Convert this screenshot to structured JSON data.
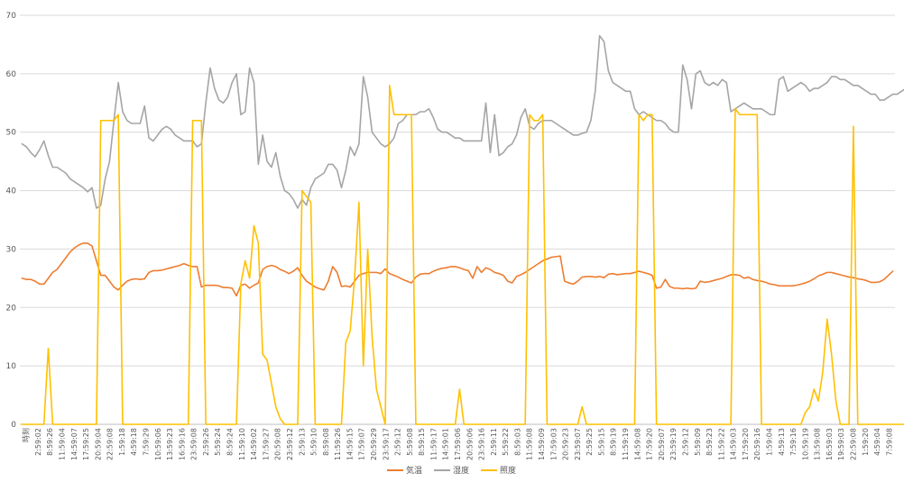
{
  "chart_data": {
    "type": "line",
    "title": "",
    "xlabel": "",
    "ylabel": "",
    "ylim": [
      0,
      70
    ],
    "y_ticks": [
      0,
      10,
      20,
      30,
      40,
      50,
      60,
      70
    ],
    "grid": "horizontal",
    "legend_position": "bottom",
    "x_ticks": [
      "時刻",
      "2:59:02",
      "8:59:26",
      "11:59:04",
      "14:59:07",
      "17:59:25",
      "20:59:04",
      "22:59:08",
      "1:59:18",
      "4:59:18",
      "7:59:29",
      "10:59:06",
      "13:59:23",
      "16:59:16",
      "23:59:08",
      "2:59:26",
      "5:59:24",
      "8:59:24",
      "11:59:10",
      "14:59:02",
      "17:59:27",
      "20:59:08",
      "23:59:12",
      "2:59:13",
      "5:59:10",
      "8:59:08",
      "11:59:26",
      "14:59:15",
      "17:59:07",
      "20:59:29",
      "23:59:17",
      "2:59:12",
      "5:59:08",
      "8:59:15",
      "11:59:17",
      "14:59:01",
      "17:59:06",
      "20:59:06",
      "23:59:16",
      "2:59:11",
      "5:59:22",
      "8:59:03",
      "11:59:08",
      "14:59:09",
      "17:59:03",
      "20:59:23",
      "23:59:07",
      "2:59:25",
      "5:59:15",
      "8:59:19",
      "11:59:19",
      "14:59:08",
      "17:59:20",
      "20:59:07",
      "23:59:19",
      "2:59:12",
      "5:59:09",
      "8:59:23",
      "11:59:22",
      "14:59:03",
      "17:59:20",
      "20:59:16",
      "1:59:04",
      "4:59:13",
      "7:59:16",
      "10:59:19",
      "13:59:08",
      "16:59:03",
      "19:59:03",
      "22:59:08",
      "1:59:20",
      "4:59:04",
      "7:59:08"
    ],
    "series": [
      {
        "name": "気温",
        "color": "#ED7D31",
        "values": [
          25.0,
          24.8,
          24.8,
          24.5,
          24.0,
          24.0,
          25.0,
          26.0,
          26.5,
          27.5,
          28.5,
          29.5,
          30.2,
          30.7,
          31.0,
          31.0,
          30.5,
          28.0,
          25.5,
          25.5,
          24.5,
          23.5,
          23.0,
          23.8,
          24.5,
          24.8,
          24.9,
          24.8,
          24.9,
          26.0,
          26.3,
          26.3,
          26.4,
          26.6,
          26.8,
          27.0,
          27.2,
          27.5,
          27.2,
          27.0,
          27.0,
          23.5,
          23.8,
          23.8,
          23.8,
          23.7,
          23.4,
          23.4,
          23.3,
          22.0,
          23.8,
          24.0,
          23.3,
          23.8,
          24.2,
          26.5,
          27.0,
          27.2,
          27.0,
          26.5,
          26.2,
          25.8,
          26.2,
          26.8,
          25.5,
          24.5,
          24.0,
          23.5,
          23.2,
          23.0,
          24.5,
          27.0,
          26.0,
          23.6,
          23.7,
          23.5,
          24.5,
          25.5,
          25.8,
          26.0,
          26.0,
          26.0,
          25.8,
          26.6,
          25.8,
          25.5,
          25.2,
          24.8,
          24.5,
          24.2,
          25.2,
          25.7,
          25.8,
          25.8,
          26.2,
          26.5,
          26.7,
          26.8,
          27.0,
          27.0,
          26.8,
          26.5,
          26.3,
          25.0,
          27.0,
          26.0,
          26.8,
          26.5,
          26.0,
          25.8,
          25.5,
          24.5,
          24.2,
          25.3,
          25.6,
          26.0,
          26.5,
          27.0,
          27.5,
          28.0,
          28.3,
          28.6,
          28.7,
          28.8,
          24.5,
          24.2,
          24.0,
          24.5,
          25.2,
          25.3,
          25.3,
          25.2,
          25.3,
          25.1,
          25.7,
          25.8,
          25.6,
          25.7,
          25.8,
          25.8,
          26.0,
          26.2,
          26.0,
          25.8,
          25.5,
          23.3,
          23.5,
          24.8,
          23.6,
          23.3,
          23.3,
          23.2,
          23.3,
          23.2,
          23.3,
          24.5,
          24.3,
          24.4,
          24.6,
          24.8,
          25.0,
          25.3,
          25.6,
          25.6,
          25.5,
          25.0,
          25.2,
          24.8,
          24.6,
          24.5,
          24.3,
          24.0,
          23.9,
          23.7,
          23.7,
          23.7,
          23.7,
          23.8,
          24.0,
          24.2,
          24.5,
          24.9,
          25.4,
          25.7,
          26.0,
          26.0,
          25.8,
          25.6,
          25.4,
          25.2,
          25.1,
          24.9,
          24.8,
          24.6,
          24.3,
          24.3,
          24.4,
          24.8,
          25.5,
          26.2
        ]
      },
      {
        "name": "湿度",
        "color": "#A5A5A5",
        "values": [
          48.0,
          47.5,
          46.5,
          45.8,
          47.0,
          48.5,
          46.0,
          44.0,
          44.0,
          43.5,
          43.0,
          42.0,
          41.5,
          41.0,
          40.5,
          39.8,
          40.5,
          37.0,
          37.5,
          42.0,
          45.0,
          52.0,
          58.5,
          53.5,
          52.0,
          51.5,
          51.5,
          51.5,
          54.5,
          49.0,
          48.5,
          49.5,
          50.5,
          51.0,
          50.5,
          49.5,
          49.0,
          48.5,
          48.5,
          48.5,
          47.5,
          48.0,
          55.0,
          61.0,
          57.5,
          55.5,
          55.0,
          56.0,
          58.5,
          60.0,
          53.0,
          53.5,
          61.0,
          58.5,
          44.5,
          49.5,
          45.0,
          44.0,
          46.5,
          42.5,
          40.0,
          39.5,
          38.5,
          37.0,
          38.5,
          37.5,
          40.5,
          42.0,
          42.5,
          43.0,
          44.5,
          44.5,
          43.5,
          40.5,
          43.5,
          47.5,
          46.0,
          48.0,
          59.5,
          56.0,
          50.0,
          49.0,
          48.0,
          47.5,
          48.0,
          49.0,
          51.5,
          52.0,
          53.0,
          53.0,
          53.0,
          53.5,
          53.5,
          54.0,
          52.5,
          50.5,
          50.0,
          50.0,
          49.5,
          49.0,
          49.0,
          48.5,
          48.5,
          48.5,
          48.5,
          48.5,
          55.0,
          46.5,
          53.0,
          46.0,
          46.5,
          47.5,
          48.0,
          49.5,
          52.5,
          54.0,
          51.0,
          50.5,
          51.5,
          52.0,
          52.0,
          52.0,
          51.5,
          51.0,
          50.5,
          50.0,
          49.5,
          49.5,
          49.8,
          50.0,
          52.0,
          57.0,
          66.5,
          65.5,
          60.5,
          58.5,
          58.0,
          57.5,
          57.0,
          57.0,
          54.0,
          53.0,
          53.5,
          53.0,
          52.5,
          52.0,
          52.0,
          51.5,
          50.5,
          50.0,
          50.0,
          61.5,
          59.0,
          54.0,
          60.0,
          60.5,
          58.5,
          58.0,
          58.5,
          58.0,
          59.0,
          58.5,
          53.5,
          54.0,
          54.5,
          55.0,
          54.5,
          54.0,
          54.0,
          54.0,
          53.5,
          53.0,
          53.0,
          59.0,
          59.5,
          57.0,
          57.5,
          58.0,
          58.5,
          58.0,
          57.0,
          57.5,
          57.5,
          58.0,
          58.5,
          59.5,
          59.5,
          59.0,
          59.0,
          58.5,
          58.0,
          58.0,
          57.5,
          57.0,
          56.5,
          56.5,
          55.5,
          55.5,
          56.0,
          56.5,
          56.5,
          57.0,
          57.5,
          58.0,
          58.5,
          59.0,
          59.0,
          58.5,
          58.0
        ]
      },
      {
        "name": "照度",
        "color": "#FFC000",
        "values": [
          0,
          0,
          0,
          0,
          0,
          0,
          13,
          0,
          0,
          0,
          0,
          0,
          0,
          0,
          0,
          0,
          0,
          0,
          52,
          52,
          52,
          52,
          53,
          0,
          0,
          0,
          0,
          0,
          0,
          0,
          0,
          0,
          0,
          0,
          0,
          0,
          0,
          0,
          0,
          52,
          52,
          52,
          0,
          0,
          0,
          0,
          0,
          0,
          0,
          0,
          24,
          28,
          25,
          34,
          31,
          12,
          11,
          7,
          3,
          1,
          0,
          0,
          0,
          0,
          40,
          39,
          38,
          0,
          0,
          0,
          0,
          0,
          0,
          0,
          14,
          16,
          25,
          38,
          10,
          30,
          15,
          6,
          3,
          0,
          58,
          53,
          53,
          53,
          53,
          53,
          0,
          0,
          0,
          0,
          0,
          0,
          0,
          0,
          0,
          0,
          6,
          0,
          0,
          0,
          0,
          0,
          0,
          0,
          0,
          0,
          0,
          0,
          0,
          0,
          0,
          0,
          53,
          52,
          52,
          53,
          0,
          0,
          0,
          0,
          0,
          0,
          0,
          0,
          3,
          0,
          0,
          0,
          0,
          0,
          0,
          0,
          0,
          0,
          0,
          0,
          0,
          53,
          52,
          53,
          53,
          0,
          0,
          0,
          0,
          0,
          0,
          0,
          0,
          0,
          0,
          0,
          0,
          0,
          0,
          0,
          0,
          0,
          0,
          54,
          53,
          53,
          53,
          53,
          53,
          0,
          0,
          0,
          0,
          0,
          0,
          0,
          0,
          0,
          0,
          2,
          3,
          6,
          4,
          9,
          18,
          12,
          4,
          0,
          0,
          0,
          51,
          0,
          0,
          0,
          0,
          0,
          0,
          0,
          0,
          0,
          0,
          0,
          0,
          0,
          0,
          0,
          0,
          0,
          0,
          0,
          0,
          0,
          0,
          0,
          0,
          0,
          0,
          0,
          0,
          0,
          0,
          0
        ]
      }
    ]
  },
  "legend": [
    {
      "label": "気温",
      "color": "#ED7D31"
    },
    {
      "label": "湿度",
      "color": "#A5A5A5"
    },
    {
      "label": "照度",
      "color": "#FFC000"
    }
  ]
}
